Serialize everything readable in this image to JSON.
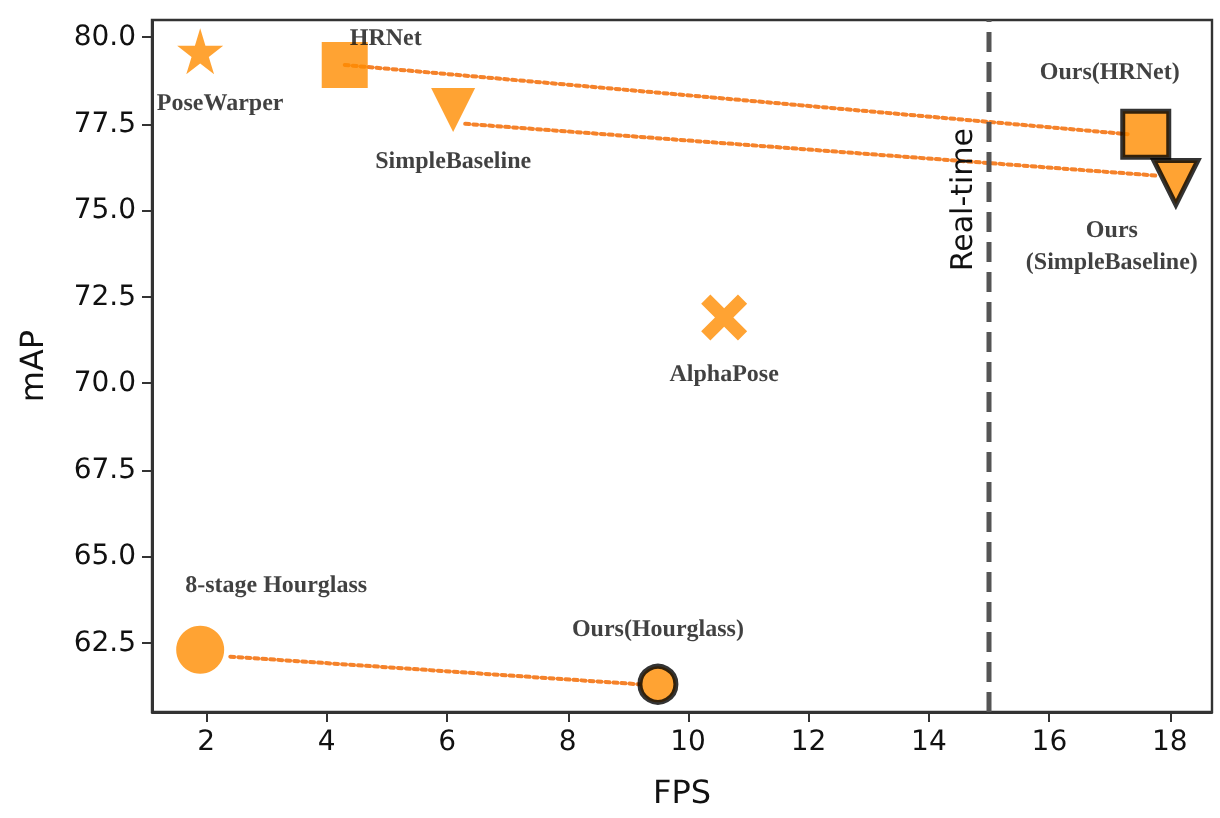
{
  "chart_data": {
    "type": "scatter",
    "xlabel": "FPS",
    "ylabel": "mAP",
    "legend": false,
    "grid": false,
    "xlim": [
      1.1,
      18.7
    ],
    "xticks": [
      2,
      4,
      6,
      8,
      10,
      12,
      14,
      16,
      18
    ],
    "ylim": [
      60.5,
      80.5
    ],
    "yticks": [
      {
        "value": 62.5,
        "label": "62.5"
      },
      {
        "value": 65,
        "label": "65.0"
      },
      {
        "value": 67.5,
        "label": "67.5"
      },
      {
        "value": 70,
        "label": "70.0"
      },
      {
        "value": 72.5,
        "label": "72.5"
      },
      {
        "value": 75,
        "label": "75.0"
      },
      {
        "value": 77.5,
        "label": "77.5"
      },
      {
        "value": 80,
        "label": "80.0"
      }
    ],
    "ref_lines": [
      {
        "axis": "x",
        "value": 15,
        "label": "Real-time",
        "color": "#555555",
        "line_style": "dashed"
      }
    ],
    "series": [
      {
        "type": "line",
        "color": "#f5822a",
        "x": [
          4.3,
          17.3
        ],
        "values": [
          79.2,
          77.2
        ],
        "line_style": "dotted",
        "marker": "none"
      },
      {
        "type": "line",
        "color": "#f5822a",
        "x": [
          6.3,
          17.8
        ],
        "values": [
          77.5,
          76.0
        ],
        "line_style": "dotted",
        "marker": "none"
      },
      {
        "type": "line",
        "color": "#f5822a",
        "x": [
          2.4,
          9.2
        ],
        "values": [
          62.1,
          61.3
        ],
        "line_style": "dotted",
        "marker": "none"
      },
      {
        "name": "PoseWarper",
        "color": "#ff8c00",
        "x": [
          1.9
        ],
        "values": [
          79.6
        ],
        "marker": "star"
      },
      {
        "name": "HRNet",
        "color": "#ff8c00",
        "x": [
          4.3
        ],
        "values": [
          79.2
        ],
        "marker": "square"
      },
      {
        "name": "SimpleBaseline",
        "color": "#ff8c00",
        "x": [
          6.1
        ],
        "values": [
          77.9
        ],
        "marker": "triangle"
      },
      {
        "name": "AlphaPose",
        "color": "#ff8c00",
        "x": [
          10.6
        ],
        "values": [
          71.9
        ],
        "marker": "cross"
      },
      {
        "name": "Ours(HRNet)",
        "color": "#ff8c00",
        "x": [
          17.6
        ],
        "values": [
          77.2
        ],
        "marker": "square"
      },
      {
        "name": "Ours\n(SimpleBaseline)",
        "color": "#ff8c00",
        "x": [
          18.1
        ],
        "values": [
          75.8
        ],
        "marker": "triangle"
      },
      {
        "name": "8-stage Hourglass",
        "color": "#ff8c00",
        "x": [
          1.9
        ],
        "values": [
          62.3
        ],
        "marker": "circle"
      },
      {
        "name": "Ours(Hourglass)",
        "color": "#ff8c00",
        "x": [
          9.5
        ],
        "values": [
          61.3
        ],
        "marker": "circle"
      }
    ]
  }
}
